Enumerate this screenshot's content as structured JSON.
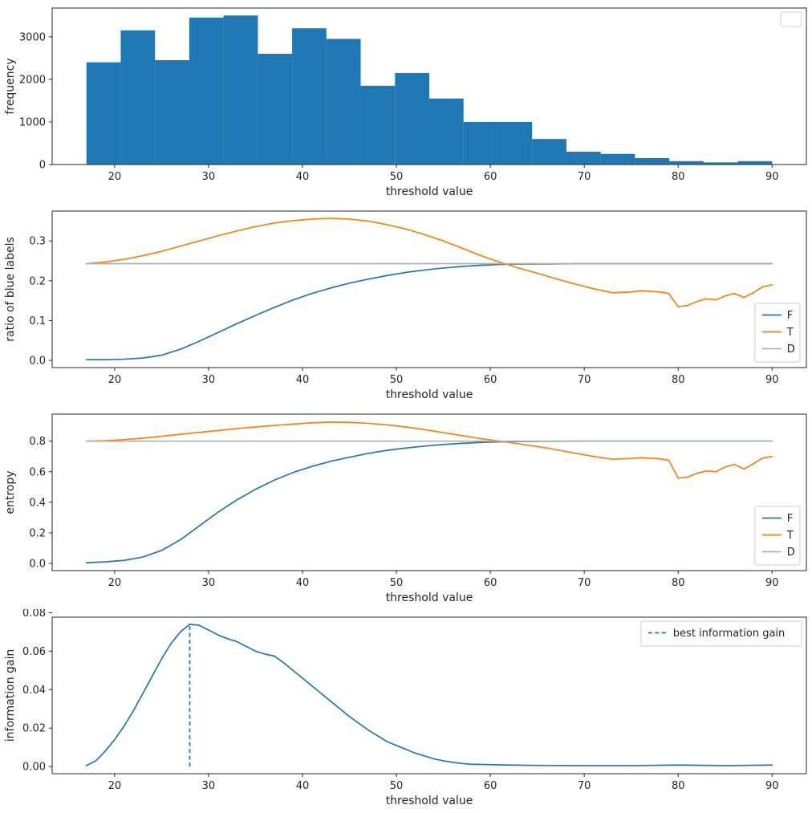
{
  "figure": {
    "background": "#ffffff",
    "accent_blue": "#1f77b4",
    "accent_orange": "#ff7f0e",
    "accent_gray": "#b0b0b0"
  },
  "chart_data": [
    {
      "name": "frequency-histogram",
      "type": "bar",
      "title": "",
      "xlabel": "threshold value",
      "ylabel": "frequency",
      "xlim": [
        13.35,
        93.65
      ],
      "ylim": [
        0,
        3675
      ],
      "xticks": [
        20,
        30,
        40,
        50,
        60,
        70,
        80,
        90
      ],
      "xtick_labels": [
        "20",
        "30",
        "40",
        "50",
        "60",
        "70",
        "80",
        "90"
      ],
      "yticks": [
        0,
        1000,
        2000,
        3000
      ],
      "ytick_labels": [
        "0",
        "1000",
        "2000",
        "3000"
      ],
      "bar_color": "#1f77b4",
      "bin_start": 17,
      "bin_width": 3.65,
      "bin_heights": [
        2400,
        3150,
        2450,
        3450,
        3500,
        2600,
        3200,
        2950,
        1850,
        2150,
        1550,
        1000,
        1000,
        600,
        300,
        250,
        150,
        80,
        50,
        80
      ],
      "legend": {
        "position": "upper right",
        "entries": []
      }
    },
    {
      "name": "ratio-of-blue-labels",
      "type": "line",
      "title": "",
      "xlabel": "threshold value",
      "ylabel": "ratio of blue labels",
      "xlim": [
        13.35,
        93.65
      ],
      "ylim": [
        -0.018,
        0.375
      ],
      "xticks": [
        20,
        30,
        40,
        50,
        60,
        70,
        80,
        90
      ],
      "xtick_labels": [
        "20",
        "30",
        "40",
        "50",
        "60",
        "70",
        "80",
        "90"
      ],
      "yticks": [
        0.0,
        0.1,
        0.2,
        0.3
      ],
      "ytick_labels": [
        "0.0",
        "0.1",
        "0.2",
        "0.3"
      ],
      "series": [
        {
          "name": "F",
          "color": "#1f77b4",
          "x": [
            17,
            19,
            21,
            23,
            25,
            27,
            29,
            31,
            33,
            35,
            37,
            39,
            41,
            43,
            45,
            47,
            49,
            51,
            53,
            55,
            57,
            59,
            61,
            63,
            65,
            70,
            75,
            80,
            85,
            90
          ],
          "y": [
            0.002,
            0.002,
            0.003,
            0.006,
            0.013,
            0.028,
            0.048,
            0.07,
            0.092,
            0.113,
            0.133,
            0.152,
            0.168,
            0.182,
            0.194,
            0.204,
            0.213,
            0.221,
            0.227,
            0.232,
            0.236,
            0.239,
            0.241,
            0.242,
            0.242,
            0.243,
            0.243,
            0.243,
            0.243,
            0.243
          ]
        },
        {
          "name": "T",
          "color": "#ff7f0e",
          "x": [
            17,
            19,
            21,
            23,
            25,
            27,
            29,
            31,
            33,
            35,
            37,
            39,
            41,
            43,
            45,
            47,
            49,
            51,
            53,
            55,
            57,
            59,
            61,
            63,
            65,
            67,
            69,
            71,
            73,
            75,
            76,
            78,
            79,
            80,
            81,
            82,
            83,
            84,
            85,
            86,
            87,
            88,
            89,
            90
          ],
          "y": [
            0.243,
            0.247,
            0.254,
            0.263,
            0.274,
            0.287,
            0.3,
            0.313,
            0.325,
            0.336,
            0.345,
            0.351,
            0.355,
            0.357,
            0.355,
            0.35,
            0.341,
            0.33,
            0.316,
            0.3,
            0.282,
            0.263,
            0.247,
            0.232,
            0.219,
            0.205,
            0.192,
            0.18,
            0.17,
            0.172,
            0.175,
            0.172,
            0.168,
            0.135,
            0.138,
            0.148,
            0.155,
            0.152,
            0.162,
            0.168,
            0.158,
            0.17,
            0.185,
            0.19
          ]
        },
        {
          "name": "D",
          "color": "#b0b0b0",
          "x": [
            17,
            90
          ],
          "y": [
            0.243,
            0.243
          ]
        }
      ],
      "legend": {
        "position": "lower right",
        "entries": [
          {
            "label": "F",
            "color": "#1f77b4",
            "dash": false
          },
          {
            "label": "T",
            "color": "#ff7f0e",
            "dash": false
          },
          {
            "label": "D",
            "color": "#b0b0b0",
            "dash": false
          }
        ]
      }
    },
    {
      "name": "entropy",
      "type": "line",
      "title": "",
      "xlabel": "threshold value",
      "ylabel": "entropy",
      "xlim": [
        13.35,
        93.65
      ],
      "ylim": [
        -0.047,
        0.977
      ],
      "xticks": [
        20,
        30,
        40,
        50,
        60,
        70,
        80,
        90
      ],
      "xtick_labels": [
        "20",
        "30",
        "40",
        "50",
        "60",
        "70",
        "80",
        "90"
      ],
      "yticks": [
        0.0,
        0.2,
        0.4,
        0.6,
        0.8
      ],
      "ytick_labels": [
        "0.0",
        "0.2",
        "0.4",
        "0.6",
        "0.8"
      ],
      "series": [
        {
          "name": "F",
          "color": "#1f77b4",
          "x": [
            17,
            19,
            21,
            23,
            25,
            27,
            29,
            31,
            33,
            35,
            37,
            39,
            41,
            43,
            45,
            47,
            49,
            51,
            53,
            55,
            57,
            59,
            61,
            63,
            65,
            70,
            75,
            80,
            85,
            90
          ],
          "y": [
            0.005,
            0.01,
            0.02,
            0.042,
            0.085,
            0.155,
            0.245,
            0.335,
            0.415,
            0.485,
            0.545,
            0.595,
            0.635,
            0.668,
            0.695,
            0.72,
            0.74,
            0.755,
            0.768,
            0.778,
            0.786,
            0.792,
            0.796,
            0.798,
            0.799,
            0.8,
            0.8,
            0.8,
            0.8,
            0.8
          ]
        },
        {
          "name": "T",
          "color": "#ff7f0e",
          "x": [
            17,
            19,
            21,
            23,
            25,
            27,
            29,
            31,
            33,
            35,
            37,
            39,
            41,
            43,
            45,
            47,
            49,
            51,
            53,
            55,
            57,
            59,
            61,
            63,
            65,
            67,
            69,
            71,
            73,
            75,
            76,
            78,
            79,
            80,
            81,
            82,
            83,
            84,
            85,
            86,
            87,
            88,
            89,
            90
          ],
          "y": [
            0.8,
            0.803,
            0.81,
            0.82,
            0.832,
            0.845,
            0.858,
            0.87,
            0.882,
            0.893,
            0.903,
            0.912,
            0.92,
            0.925,
            0.923,
            0.917,
            0.907,
            0.893,
            0.876,
            0.856,
            0.836,
            0.817,
            0.8,
            0.783,
            0.765,
            0.745,
            0.722,
            0.7,
            0.682,
            0.687,
            0.692,
            0.685,
            0.675,
            0.558,
            0.565,
            0.59,
            0.605,
            0.6,
            0.632,
            0.648,
            0.618,
            0.652,
            0.69,
            0.7
          ]
        },
        {
          "name": "D",
          "color": "#b0b0b0",
          "x": [
            17,
            90
          ],
          "y": [
            0.8,
            0.8
          ]
        }
      ],
      "legend": {
        "position": "lower right",
        "entries": [
          {
            "label": "F",
            "color": "#1f77b4",
            "dash": false
          },
          {
            "label": "T",
            "color": "#ff7f0e",
            "dash": false
          },
          {
            "label": "D",
            "color": "#b0b0b0",
            "dash": false
          }
        ]
      }
    },
    {
      "name": "information-gain",
      "type": "line",
      "title": "",
      "xlabel": "threshold value",
      "ylabel": "information gain",
      "xlim": [
        13.35,
        93.65
      ],
      "ylim": [
        -0.0037,
        0.0777
      ],
      "xticks": [
        20,
        30,
        40,
        50,
        60,
        70,
        80,
        90
      ],
      "xtick_labels": [
        "20",
        "30",
        "40",
        "50",
        "60",
        "70",
        "80",
        "90"
      ],
      "yticks": [
        0.0,
        0.02,
        0.04,
        0.06,
        0.08
      ],
      "ytick_labels": [
        "0.00",
        "0.02",
        "0.04",
        "0.06",
        "0.08"
      ],
      "series": [
        {
          "name": "information gain",
          "color": "#1f77b4",
          "x": [
            17,
            18,
            19,
            20,
            21,
            22,
            23,
            24,
            25,
            26,
            27,
            28,
            29,
            30,
            31,
            32,
            33,
            34,
            35,
            36,
            37,
            38,
            39,
            40,
            41,
            42,
            43,
            44,
            45,
            46,
            47,
            48,
            49,
            50,
            51,
            52,
            53,
            54,
            55,
            56,
            57,
            58,
            60,
            62,
            65,
            70,
            75,
            80,
            85,
            90
          ],
          "y": [
            0.0005,
            0.003,
            0.008,
            0.014,
            0.021,
            0.029,
            0.038,
            0.047,
            0.056,
            0.064,
            0.07,
            0.074,
            0.0735,
            0.071,
            0.0685,
            0.0665,
            0.065,
            0.0625,
            0.06,
            0.0585,
            0.0575,
            0.054,
            0.05,
            0.046,
            0.042,
            0.038,
            0.034,
            0.03,
            0.026,
            0.0225,
            0.019,
            0.016,
            0.013,
            0.011,
            0.009,
            0.007,
            0.0055,
            0.004,
            0.003,
            0.0022,
            0.0016,
            0.0012,
            0.001,
            0.0008,
            0.0006,
            0.0005,
            0.0005,
            0.0008,
            0.0005,
            0.0008
          ]
        }
      ],
      "vline": {
        "x": 28,
        "y0": 0.0,
        "y1": 0.074,
        "color": "#1f77b4",
        "dash": true
      },
      "legend": {
        "position": "upper right",
        "entries": [
          {
            "label": "best information gain",
            "color": "#1f77b4",
            "dash": true
          }
        ]
      }
    }
  ]
}
